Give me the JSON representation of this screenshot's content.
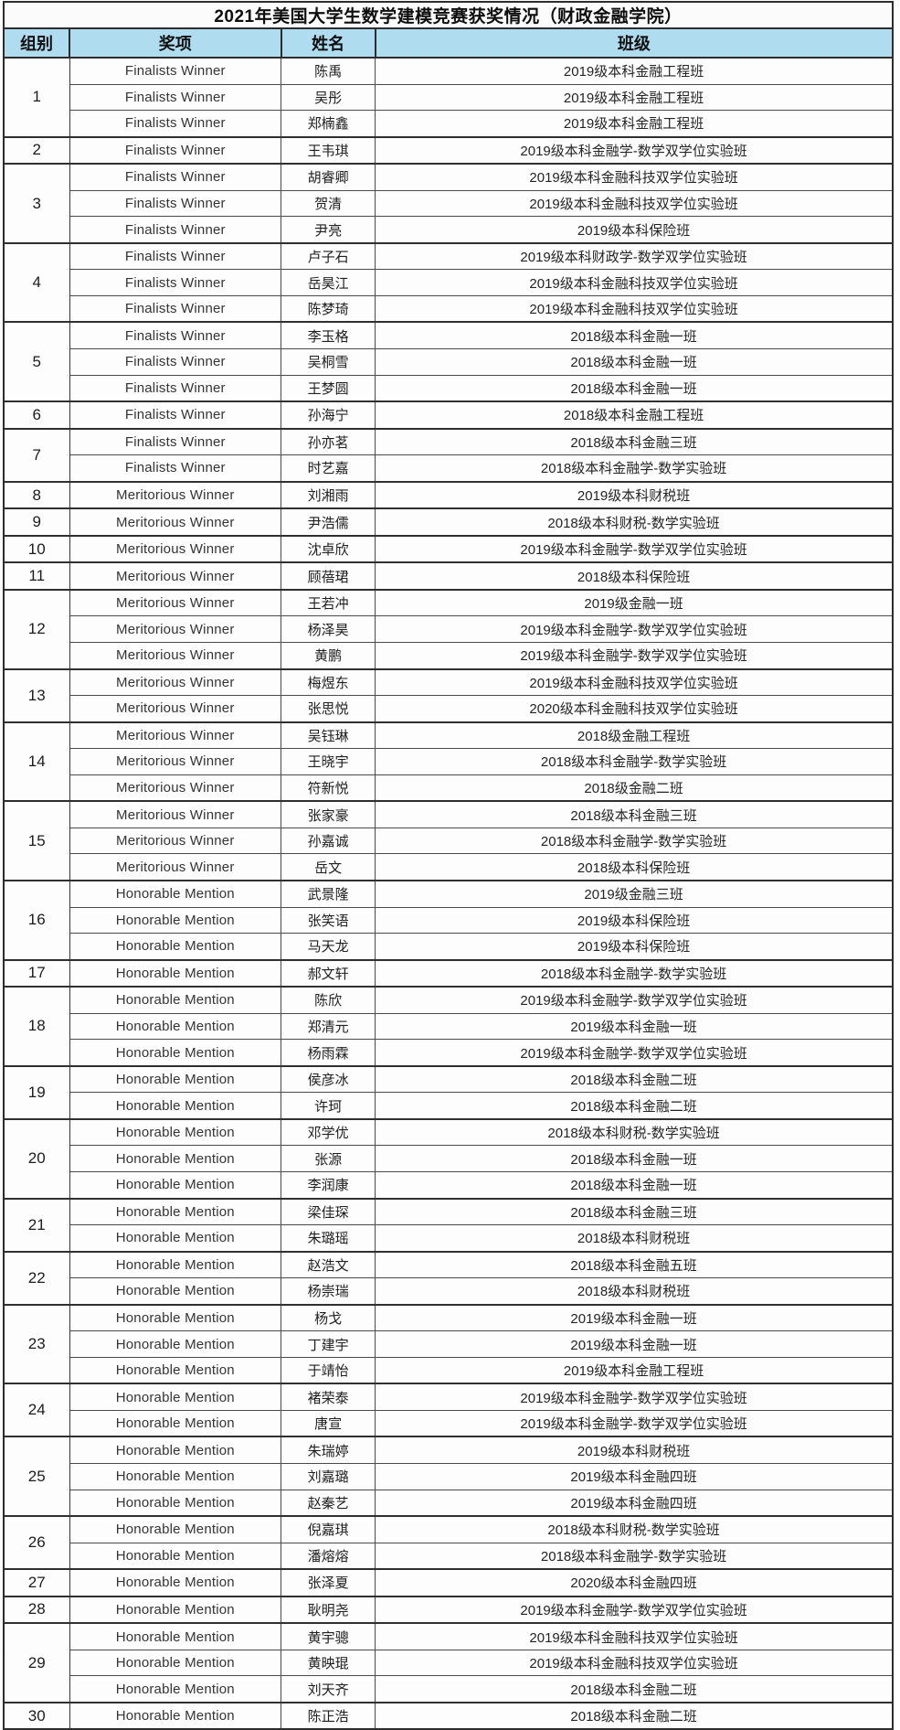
{
  "title": "2021年美国大学生数学建模竞赛获奖情况（财政金融学院）",
  "colors": {
    "header_bg": "#b0dcf0",
    "border": "#2d2d2d",
    "text": "#262626"
  },
  "table": {
    "columns": [
      "组别",
      "奖项",
      "姓名",
      "班级"
    ],
    "groups": [
      {
        "id": "1",
        "members": [
          {
            "award": "Finalists Winner",
            "name": "陈禹",
            "class": "2019级本科金融工程班"
          },
          {
            "award": "Finalists Winner",
            "name": "吴彤",
            "class": "2019级本科金融工程班"
          },
          {
            "award": "Finalists Winner",
            "name": "郑楠鑫",
            "class": "2019级本科金融工程班"
          }
        ]
      },
      {
        "id": "2",
        "members": [
          {
            "award": "Finalists Winner",
            "name": "王韦琪",
            "class": "2019级本科金融学-数学双学位实验班"
          }
        ]
      },
      {
        "id": "3",
        "members": [
          {
            "award": "Finalists Winner",
            "name": "胡睿卿",
            "class": "2019级本科金融科技双学位实验班"
          },
          {
            "award": "Finalists Winner",
            "name": "贺清",
            "class": "2019级本科金融科技双学位实验班"
          },
          {
            "award": "Finalists Winner",
            "name": "尹亮",
            "class": "2019级本科保险班"
          }
        ]
      },
      {
        "id": "4",
        "members": [
          {
            "award": "Finalists Winner",
            "name": "卢子石",
            "class": "2019级本科财政学-数学双学位实验班"
          },
          {
            "award": "Finalists Winner",
            "name": "岳昊江",
            "class": "2019级本科金融科技双学位实验班"
          },
          {
            "award": "Finalists Winner",
            "name": "陈梦琦",
            "class": "2019级本科金融科技双学位实验班"
          }
        ]
      },
      {
        "id": "5",
        "members": [
          {
            "award": "Finalists Winner",
            "name": "李玉格",
            "class": "2018级本科金融一班"
          },
          {
            "award": "Finalists Winner",
            "name": "吴桐雪",
            "class": "2018级本科金融一班"
          },
          {
            "award": "Finalists Winner",
            "name": "王梦圆",
            "class": "2018级本科金融一班"
          }
        ]
      },
      {
        "id": "6",
        "members": [
          {
            "award": "Finalists Winner",
            "name": "孙海宁",
            "class": "2018级本科金融工程班"
          }
        ]
      },
      {
        "id": "7",
        "members": [
          {
            "award": "Finalists Winner",
            "name": "孙亦茗",
            "class": "2018级本科金融三班"
          },
          {
            "award": "Finalists Winner",
            "name": "时艺嘉",
            "class": "2018级本科金融学-数学实验班"
          }
        ]
      },
      {
        "id": "8",
        "members": [
          {
            "award": "Meritorious Winner",
            "name": "刘湘雨",
            "class": "2019级本科财税班"
          }
        ]
      },
      {
        "id": "9",
        "members": [
          {
            "award": "Meritorious Winner",
            "name": "尹浩儒",
            "class": "2018级本科财税-数学实验班"
          }
        ]
      },
      {
        "id": "10",
        "members": [
          {
            "award": "Meritorious Winner",
            "name": "沈卓欣",
            "class": "2019级本科金融学-数学双学位实验班"
          }
        ]
      },
      {
        "id": "11",
        "members": [
          {
            "award": "Meritorious Winner",
            "name": "顾蓓珺",
            "class": "2018级本科保险班"
          }
        ]
      },
      {
        "id": "12",
        "members": [
          {
            "award": "Meritorious Winner",
            "name": "王若冲",
            "class": "2019级金融一班"
          },
          {
            "award": "Meritorious Winner",
            "name": "杨泽昊",
            "class": "2019级本科金融学-数学双学位实验班"
          },
          {
            "award": "Meritorious Winner",
            "name": "黄鹏",
            "class": "2019级本科金融学-数学双学位实验班"
          }
        ]
      },
      {
        "id": "13",
        "members": [
          {
            "award": "Meritorious Winner",
            "name": "梅煜东",
            "class": "2019级本科金融科技双学位实验班"
          },
          {
            "award": "Meritorious Winner",
            "name": "张思悦",
            "class": "2020级本科金融科技双学位实验班"
          }
        ]
      },
      {
        "id": "14",
        "members": [
          {
            "award": "Meritorious Winner",
            "name": "吴钰琳",
            "class": "2018级金融工程班"
          },
          {
            "award": "Meritorious Winner",
            "name": "王晓宇",
            "class": "2018级本科金融学-数学实验班"
          },
          {
            "award": "Meritorious Winner",
            "name": "符新悦",
            "class": "2018级金融二班"
          }
        ]
      },
      {
        "id": "15",
        "members": [
          {
            "award": "Meritorious Winner",
            "name": "张家豪",
            "class": "2018级本科金融三班"
          },
          {
            "award": "Meritorious Winner",
            "name": "孙嘉诚",
            "class": "2018级本科金融学-数学实验班"
          },
          {
            "award": "Meritorious Winner",
            "name": "岳文",
            "class": "2018级本科保险班"
          }
        ]
      },
      {
        "id": "16",
        "members": [
          {
            "award": "Honorable Mention",
            "name": "武景隆",
            "class": "2019级金融三班"
          },
          {
            "award": "Honorable Mention",
            "name": "张笑语",
            "class": "2019级本科保险班"
          },
          {
            "award": "Honorable Mention",
            "name": "马天龙",
            "class": "2019级本科保险班"
          }
        ]
      },
      {
        "id": "17",
        "members": [
          {
            "award": "Honorable Mention",
            "name": "郝文轩",
            "class": "2018级本科金融学-数学实验班"
          }
        ]
      },
      {
        "id": "18",
        "members": [
          {
            "award": "Honorable Mention",
            "name": "陈欣",
            "class": "2019级本科金融学-数学双学位实验班"
          },
          {
            "award": "Honorable Mention",
            "name": "郑清元",
            "class": "2019级本科金融一班"
          },
          {
            "award": "Honorable Mention",
            "name": "杨雨霖",
            "class": "2019级本科金融学-数学双学位实验班"
          }
        ]
      },
      {
        "id": "19",
        "members": [
          {
            "award": "Honorable Mention",
            "name": "侯彦冰",
            "class": "2018级本科金融二班"
          },
          {
            "award": "Honorable Mention",
            "name": "许珂",
            "class": "2018级本科金融二班"
          }
        ]
      },
      {
        "id": "20",
        "members": [
          {
            "award": "Honorable Mention",
            "name": "邓学优",
            "class": "2018级本科财税-数学实验班"
          },
          {
            "award": "Honorable Mention",
            "name": "张源",
            "class": "2018级本科金融一班"
          },
          {
            "award": "Honorable Mention",
            "name": "李润康",
            "class": "2018级本科金融一班"
          }
        ]
      },
      {
        "id": "21",
        "members": [
          {
            "award": "Honorable Mention",
            "name": "梁佳琛",
            "class": "2018级本科金融三班"
          },
          {
            "award": "Honorable Mention",
            "name": "朱璐瑶",
            "class": "2018级本科财税班"
          }
        ]
      },
      {
        "id": "22",
        "members": [
          {
            "award": "Honorable Mention",
            "name": "赵浩文",
            "class": "2018级本科金融五班"
          },
          {
            "award": "Honorable Mention",
            "name": "杨崇瑞",
            "class": "2018级本科财税班"
          }
        ]
      },
      {
        "id": "23",
        "members": [
          {
            "award": "Honorable Mention",
            "name": "杨戈",
            "class": "2019级本科金融一班"
          },
          {
            "award": "Honorable Mention",
            "name": "丁建宇",
            "class": "2019级本科金融一班"
          },
          {
            "award": "Honorable Mention",
            "name": "于靖怡",
            "class": "2019级本科金融工程班"
          }
        ]
      },
      {
        "id": "24",
        "members": [
          {
            "award": "Honorable Mention",
            "name": "褚荣泰",
            "class": "2019级本科金融学-数学双学位实验班"
          },
          {
            "award": "Honorable Mention",
            "name": "唐宣",
            "class": "2019级本科金融学-数学双学位实验班"
          }
        ]
      },
      {
        "id": "25",
        "members": [
          {
            "award": "Honorable Mention",
            "name": "朱瑞婷",
            "class": "2019级本科财税班"
          },
          {
            "award": "Honorable Mention",
            "name": "刘嘉璐",
            "class": "2019级本科金融四班"
          },
          {
            "award": "Honorable Mention",
            "name": "赵秦艺",
            "class": "2019级本科金融四班"
          }
        ]
      },
      {
        "id": "26",
        "members": [
          {
            "award": "Honorable Mention",
            "name": "倪嘉琪",
            "class": "2018级本科财税-数学实验班"
          },
          {
            "award": "Honorable Mention",
            "name": "潘熔熔",
            "class": "2018级本科金融学-数学实验班"
          }
        ]
      },
      {
        "id": "27",
        "members": [
          {
            "award": "Honorable Mention",
            "name": "张泽夏",
            "class": "2020级本科金融四班"
          }
        ]
      },
      {
        "id": "28",
        "members": [
          {
            "award": "Honorable Mention",
            "name": "耿明尧",
            "class": "2019级本科金融学-数学双学位实验班"
          }
        ]
      },
      {
        "id": "29",
        "members": [
          {
            "award": "Honorable Mention",
            "name": "黄宇骢",
            "class": "2019级本科金融科技双学位实验班"
          },
          {
            "award": "Honorable Mention",
            "name": "黄映琨",
            "class": "2019级本科金融科技双学位实验班"
          },
          {
            "award": "Honorable Mention",
            "name": "刘天齐",
            "class": "2018级本科金融二班"
          }
        ]
      },
      {
        "id": "30",
        "members": [
          {
            "award": "Honorable Mention",
            "name": "陈正浩",
            "class": "2018级本科金融二班"
          }
        ]
      }
    ]
  }
}
